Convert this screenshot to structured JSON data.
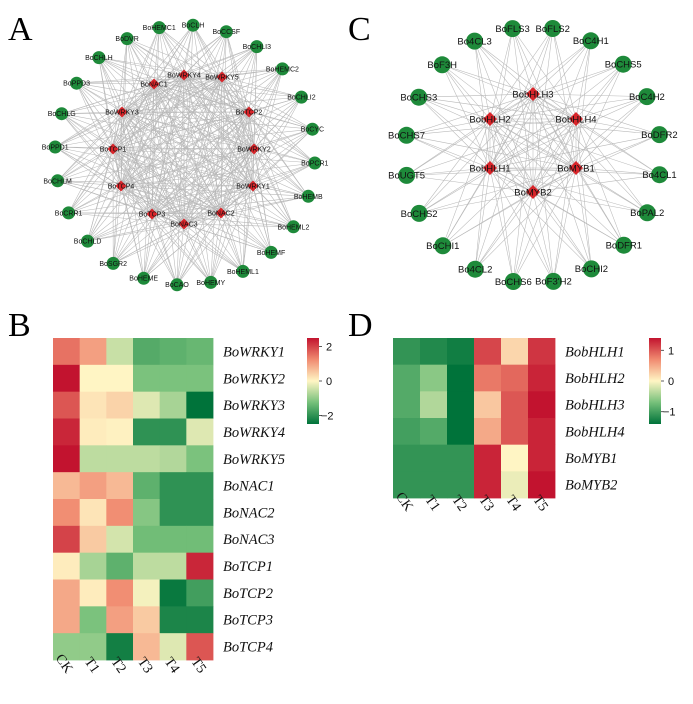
{
  "panels": {
    "A": "A",
    "B": "B",
    "C": "C",
    "D": "D"
  },
  "network_A": {
    "hubs": [
      "BoWRKY4",
      "BoWRKY5",
      "BoNAC1",
      "BoWRKY3",
      "BoTCP2",
      "BoTCP1",
      "BoWRKY2",
      "BoTCP4",
      "BoWRKY1",
      "BoTCP3",
      "BoNAC2",
      "BoNAC3"
    ],
    "outer": [
      "BoHEMC1",
      "BoCLH",
      "BoCCSF",
      "BoCHLI3",
      "BoHEMC2",
      "BoCHLI2",
      "BoCYC",
      "BoPCR1",
      "BoHEMB",
      "BoHEML2",
      "BoHEMF",
      "BoHEML1",
      "BoHEMY",
      "BoCAO",
      "BoHEME",
      "BoSGR2",
      "BoCHLD",
      "BoCRR1",
      "BoCHLM",
      "BoPPD1",
      "BoCHLG",
      "BoPPD3",
      "BoCHLH",
      "BoDVR"
    ],
    "colors": {
      "hub": "#d8252a",
      "outer": "#1e8a3a"
    }
  },
  "network_C": {
    "hubs": [
      "BobHLH3",
      "BobHLH2",
      "BobHLH4",
      "BobHLH1",
      "BoMYB1",
      "BoMYB2"
    ],
    "outer": [
      "BoFLS3",
      "BoFLS2",
      "BoC4H1",
      "BoCHS5",
      "BoC4H2",
      "BoDFR2",
      "Bo4CL1",
      "BoPAL2",
      "BoDFR1",
      "BoCHI2",
      "BoF3'H2",
      "BoCHS6",
      "Bo4CL2",
      "BoCHI1",
      "BoCHS2",
      "BoUGT5",
      "BoCHS7",
      "BoCHS3",
      "BoF3H",
      "Bo4CL3"
    ],
    "colors": {
      "hub": "#d8252a",
      "outer": "#1e8a3a"
    }
  },
  "chart_data": [
    {
      "type": "heatmap",
      "title": "",
      "categories": [
        "CK",
        "T1",
        "T2",
        "T3",
        "T4",
        "T5"
      ],
      "rows": [
        "BoWRKY1",
        "BoWRKY2",
        "BoWRKY3",
        "BoWRKY4",
        "BoWRKY5",
        "BoNAC1",
        "BoNAC2",
        "BoNAC3",
        "BoTCP1",
        "BoTCP2",
        "BoTCP3",
        "BoTCP4"
      ],
      "values": [
        [
          1.5,
          1.0,
          -0.5,
          -1.6,
          -1.5,
          -1.4
        ],
        [
          2.5,
          0.0,
          0.0,
          -1.2,
          -1.2,
          -1.2
        ],
        [
          1.8,
          0.2,
          0.4,
          -0.3,
          -0.8,
          -2.5
        ],
        [
          2.3,
          0.1,
          0.05,
          -2.0,
          -2.0,
          -0.3
        ],
        [
          2.5,
          -0.6,
          -0.6,
          -0.6,
          -0.7,
          -1.2
        ],
        [
          0.7,
          1.0,
          0.7,
          -1.5,
          -2.0,
          -2.0
        ],
        [
          1.2,
          0.2,
          1.2,
          -1.1,
          -2.0,
          -2.0
        ],
        [
          2.0,
          0.5,
          -0.4,
          -1.3,
          -1.3,
          -1.3
        ],
        [
          0.1,
          -0.8,
          -1.5,
          -0.6,
          -0.6,
          2.3
        ],
        [
          0.9,
          0.1,
          1.2,
          -0.1,
          -2.4,
          -1.8
        ],
        [
          0.9,
          -1.2,
          1.0,
          0.5,
          -2.2,
          -2.2
        ],
        [
          -1.0,
          -1.0,
          -2.3,
          0.7,
          -0.3,
          1.8
        ]
      ],
      "colorbar": {
        "ticks": [
          2,
          0,
          -2
        ],
        "range": [
          -2.5,
          2.5
        ]
      },
      "colors": {
        "high": "#c2132f",
        "mid": "#fff5c4",
        "low": "#00733a"
      }
    },
    {
      "type": "heatmap",
      "title": "",
      "categories": [
        "CK",
        "T1",
        "T2",
        "T3",
        "T4",
        "T5"
      ],
      "rows": [
        "BobHLH1",
        "BobHLH2",
        "BobHLH3",
        "BobHLH4",
        "BoMYB1",
        "BoMYB2"
      ],
      "values": [
        [
          -1.1,
          -1.2,
          -1.3,
          1.1,
          0.2,
          1.2
        ],
        [
          -0.9,
          -0.6,
          -1.5,
          0.8,
          0.9,
          1.3
        ],
        [
          -0.9,
          -0.4,
          -1.5,
          0.3,
          1.0,
          1.4
        ],
        [
          -1.0,
          -0.9,
          -1.5,
          0.5,
          1.0,
          1.3
        ],
        [
          -1.1,
          -1.1,
          -1.1,
          1.3,
          0.0,
          1.3
        ],
        [
          -1.1,
          -1.1,
          -1.1,
          1.3,
          -0.1,
          1.4
        ]
      ],
      "colorbar": {
        "ticks": [
          1,
          0,
          -1
        ],
        "range": [
          -1.4,
          1.4
        ]
      },
      "colors": {
        "high": "#c2132f",
        "mid": "#fff5c4",
        "low": "#00733a"
      }
    }
  ]
}
